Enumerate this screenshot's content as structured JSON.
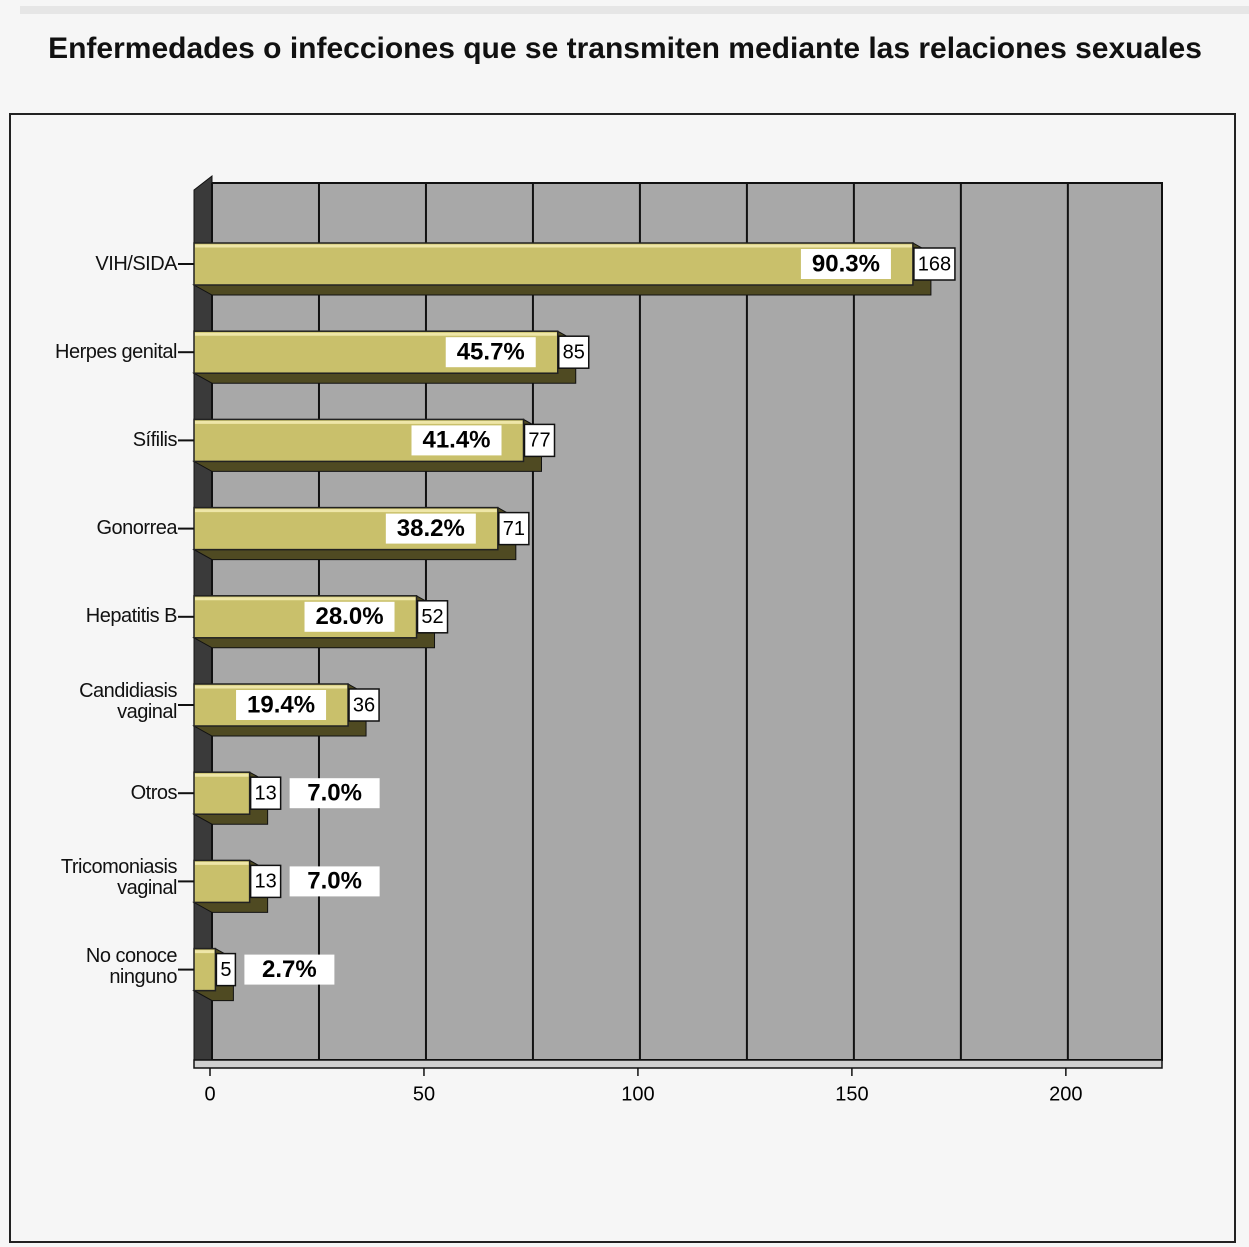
{
  "chart_data": {
    "type": "bar",
    "orientation": "horizontal",
    "title": "Enfermedades o infecciones que se transmiten mediante las relaciones sexuales",
    "categories": [
      "VIH/SIDA",
      "Herpes genital",
      "Sífilis",
      "Gonorrea",
      "Hepatitis B",
      "Candidiasis\nvaginal",
      "Otros",
      "Tricomoniasis\nvaginal",
      "No conoce\nninguno"
    ],
    "values": [
      168,
      85,
      77,
      71,
      52,
      36,
      13,
      13,
      5
    ],
    "percentages": [
      90.3,
      45.7,
      41.4,
      38.2,
      28.0,
      19.4,
      7.0,
      7.0,
      2.7
    ],
    "percentage_labels": [
      "90.3%",
      "45.7%",
      "41.4%",
      "38.2%",
      "28.0%",
      "19.4%",
      "7.0%",
      "7.0%",
      "2.7%"
    ],
    "color": "#c9c06b",
    "xlim": [
      0,
      222
    ],
    "xticks": [
      0,
      50,
      100,
      150,
      200
    ],
    "xgrid": [
      0,
      25,
      50,
      75,
      100,
      125,
      150,
      175,
      200
    ],
    "grid": true
  }
}
